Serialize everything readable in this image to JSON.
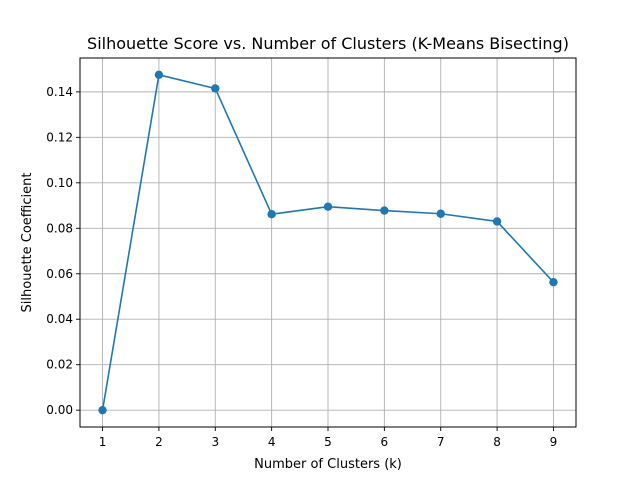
{
  "chart_data": {
    "type": "line",
    "title": "Silhouette Score vs. Number of Clusters (K-Means Bisecting)",
    "xlabel": "Number of Clusters (k)",
    "ylabel": "Silhouette Coefficient",
    "x": [
      1,
      2,
      3,
      4,
      5,
      6,
      7,
      8,
      9
    ],
    "series": [
      {
        "values": [
          0.0,
          0.1475,
          0.1415,
          0.0862,
          0.0895,
          0.0878,
          0.0864,
          0.083,
          0.0563
        ]
      }
    ],
    "xlim": [
      0.6,
      9.4
    ],
    "ylim": [
      -0.0074,
      0.1549
    ],
    "xticks": [
      "1",
      "2",
      "3",
      "4",
      "5",
      "6",
      "7",
      "8",
      "9"
    ],
    "xtick_values": [
      1,
      2,
      3,
      4,
      5,
      6,
      7,
      8,
      9
    ],
    "yticks": [
      "0.00",
      "0.02",
      "0.04",
      "0.06",
      "0.08",
      "0.10",
      "0.12",
      "0.14"
    ],
    "ytick_values": [
      0,
      0.02,
      0.04,
      0.06,
      0.08,
      0.1,
      0.12,
      0.14
    ],
    "grid": true,
    "marker": "circle",
    "line_color": "#1f77b4"
  }
}
